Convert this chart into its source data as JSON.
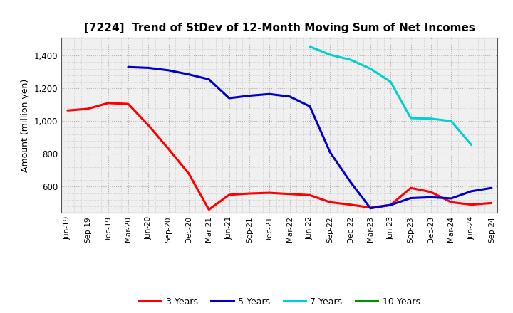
{
  "title": "[7224]  Trend of StDev of 12-Month Moving Sum of Net Incomes",
  "ylabel": "Amount (million yen)",
  "background_color": "#ffffff",
  "plot_bg_color": "#f0f0f0",
  "grid_color": "#aaaaaa",
  "ylim": [
    440,
    1510
  ],
  "yticks": [
    600,
    800,
    1000,
    1200,
    1400
  ],
  "x_labels": [
    "Jun-19",
    "Sep-19",
    "Dec-19",
    "Mar-20",
    "Jun-20",
    "Sep-20",
    "Dec-20",
    "Mar-21",
    "Jun-21",
    "Sep-21",
    "Dec-21",
    "Mar-22",
    "Jun-22",
    "Sep-22",
    "Dec-22",
    "Mar-23",
    "Jun-23",
    "Sep-23",
    "Dec-23",
    "Mar-24",
    "Jun-24",
    "Sep-24"
  ],
  "series": {
    "3 Years": {
      "color": "#ff0000",
      "data_y": [
        1065,
        1075,
        1110,
        1105,
        975,
        830,
        680,
        460,
        550,
        558,
        562,
        555,
        548,
        505,
        490,
        472,
        488,
        592,
        567,
        505,
        490,
        500
      ]
    },
    "5 Years": {
      "color": "#0000cd",
      "data_y": [
        null,
        null,
        null,
        1330,
        1325,
        1310,
        1285,
        1255,
        1140,
        1155,
        1165,
        1150,
        1090,
        810,
        630,
        468,
        488,
        530,
        535,
        528,
        572,
        592
      ]
    },
    "7 Years": {
      "color": "#00d0d0",
      "data_y": [
        null,
        null,
        null,
        null,
        null,
        null,
        null,
        null,
        null,
        null,
        null,
        null,
        1455,
        1405,
        1375,
        1320,
        1240,
        1018,
        1015,
        1000,
        855,
        null
      ]
    },
    "10 Years": {
      "color": "#009000",
      "data_y": [
        null,
        null,
        null,
        null,
        null,
        null,
        null,
        null,
        null,
        null,
        null,
        null,
        null,
        null,
        null,
        null,
        null,
        null,
        null,
        null,
        null,
        null
      ]
    }
  }
}
